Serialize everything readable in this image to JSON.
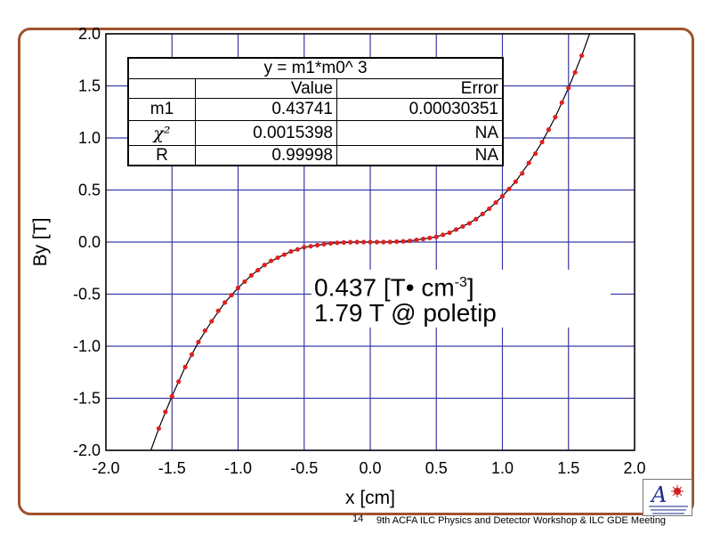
{
  "chart_data": {
    "type": "scatter",
    "xlabel": "x [cm]",
    "ylabel": "By [T]",
    "xlim": [
      -2.0,
      2.0
    ],
    "ylim": [
      -2.0,
      2.0
    ],
    "x_ticks": [
      "-2.0",
      "-1.5",
      "-1.0",
      "-0.5",
      "0.0",
      "0.5",
      "1.0",
      "1.5",
      "2.0"
    ],
    "y_ticks": [
      "2.0",
      "1.5",
      "1.0",
      "0.5",
      "0.0",
      "-0.5",
      "-1.0",
      "-1.5",
      "-2.0"
    ],
    "grid": true,
    "series": [
      {
        "type": "scatter",
        "color": "#e02020",
        "x": [
          -1.6,
          -1.55,
          -1.5,
          -1.45,
          -1.4,
          -1.35,
          -1.3,
          -1.25,
          -1.2,
          -1.15,
          -1.1,
          -1.05,
          -1.0,
          -0.95,
          -0.9,
          -0.85,
          -0.8,
          -0.75,
          -0.7,
          -0.65,
          -0.6,
          -0.55,
          -0.5,
          -0.45,
          -0.4,
          -0.35,
          -0.3,
          -0.25,
          -0.2,
          -0.15,
          -0.1,
          -0.05,
          0.0,
          0.05,
          0.1,
          0.15,
          0.2,
          0.25,
          0.3,
          0.35,
          0.4,
          0.45,
          0.5,
          0.55,
          0.6,
          0.65,
          0.7,
          0.75,
          0.8,
          0.85,
          0.9,
          0.95,
          1.0,
          1.05,
          1.1,
          1.15,
          1.2,
          1.25,
          1.3,
          1.35,
          1.4,
          1.45,
          1.5,
          1.55,
          1.6
        ],
        "y": [
          -1.79,
          -1.63,
          -1.48,
          -1.34,
          -1.2,
          -1.08,
          -0.96,
          -0.85,
          -0.76,
          -0.66,
          -0.58,
          -0.51,
          -0.44,
          -0.38,
          -0.32,
          -0.27,
          -0.22,
          -0.18,
          -0.15,
          -0.12,
          -0.09,
          -0.07,
          -0.05,
          -0.04,
          -0.03,
          -0.02,
          -0.012,
          -0.007,
          -0.004,
          -0.001,
          0.0,
          0.0,
          0.0,
          0.0,
          0.0,
          0.001,
          0.004,
          0.007,
          0.012,
          0.02,
          0.03,
          0.04,
          0.05,
          0.07,
          0.09,
          0.12,
          0.15,
          0.18,
          0.22,
          0.27,
          0.32,
          0.38,
          0.44,
          0.51,
          0.58,
          0.66,
          0.76,
          0.85,
          0.96,
          1.08,
          1.2,
          1.34,
          1.48,
          1.63,
          1.79
        ]
      },
      {
        "type": "line",
        "color": "#000000",
        "x": [
          -1.66,
          -1.6,
          -1.5,
          -1.4,
          -1.3,
          -1.2,
          -1.1,
          -1.0,
          -0.9,
          -0.8,
          -0.7,
          -0.6,
          -0.5,
          -0.4,
          -0.3,
          -0.2,
          -0.1,
          0.0,
          0.1,
          0.2,
          0.3,
          0.4,
          0.5,
          0.6,
          0.7,
          0.8,
          0.9,
          1.0,
          1.1,
          1.2,
          1.3,
          1.4,
          1.5,
          1.6,
          1.66
        ],
        "y": [
          -2.0,
          -1.79,
          -1.48,
          -1.2,
          -0.96,
          -0.76,
          -0.58,
          -0.44,
          -0.32,
          -0.22,
          -0.15,
          -0.09,
          -0.05,
          -0.03,
          -0.012,
          -0.004,
          0.0,
          0.0,
          0.0,
          0.004,
          0.012,
          0.03,
          0.05,
          0.09,
          0.15,
          0.22,
          0.32,
          0.44,
          0.58,
          0.76,
          0.96,
          1.2,
          1.48,
          1.79,
          2.0
        ]
      }
    ]
  },
  "fit_table": {
    "equation": "y = m1*m0^ 3",
    "header": {
      "param": "",
      "value": "Value",
      "error": "Error"
    },
    "rows": [
      {
        "param": "m1",
        "value": "0.43741",
        "error": "0.00030351"
      },
      {
        "param": "χ²",
        "value": "0.0015398",
        "error": "NA"
      },
      {
        "param": "R",
        "value": "0.99998",
        "error": "NA"
      }
    ]
  },
  "annotation": {
    "line1_a": "0.437 [T• cm",
    "line1_sup": "-3",
    "line1_b": "]",
    "line2": "1.79 T @ poletip"
  },
  "footer": {
    "page_number": "14",
    "text": "9th ACFA ILC Physics and Detector Workshop & ILC GDE Meeting"
  },
  "colors": {
    "frame": "#a0522d",
    "grid": "#3a3aa8",
    "marker": "#e02020"
  }
}
